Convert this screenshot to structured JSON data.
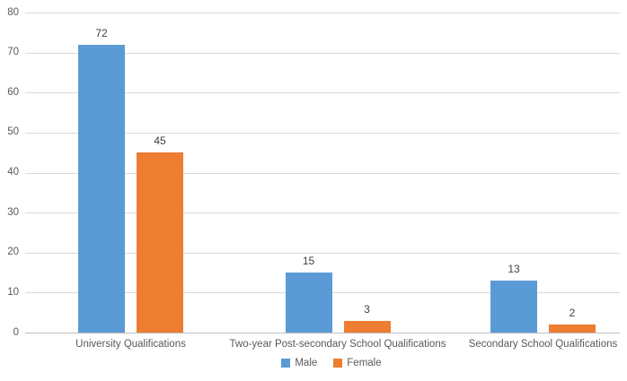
{
  "chart_data": {
    "type": "bar",
    "title": "",
    "xlabel": "",
    "ylabel": "",
    "categories": [
      "University Qualifications",
      "Two-year Post-secondary School Qualifications",
      "Secondary School Qualifications"
    ],
    "series": [
      {
        "name": "Male",
        "color": "#5B9BD5",
        "values": [
          72,
          15,
          13
        ]
      },
      {
        "name": "Female",
        "color": "#ED7D31",
        "values": [
          45,
          3,
          2
        ]
      }
    ],
    "y_ticks": [
      0,
      10,
      20,
      30,
      40,
      50,
      60,
      70,
      80
    ],
    "ylim": [
      0,
      80
    ],
    "grid": true,
    "data_labels": true,
    "legend_position": "bottom",
    "colors": {
      "gridline": "#D9D9D9",
      "axis_line": "#BFBFBF",
      "tick_label": "#595959",
      "category_label": "#595959",
      "data_label": "#404040",
      "background": "#FFFFFF"
    }
  }
}
